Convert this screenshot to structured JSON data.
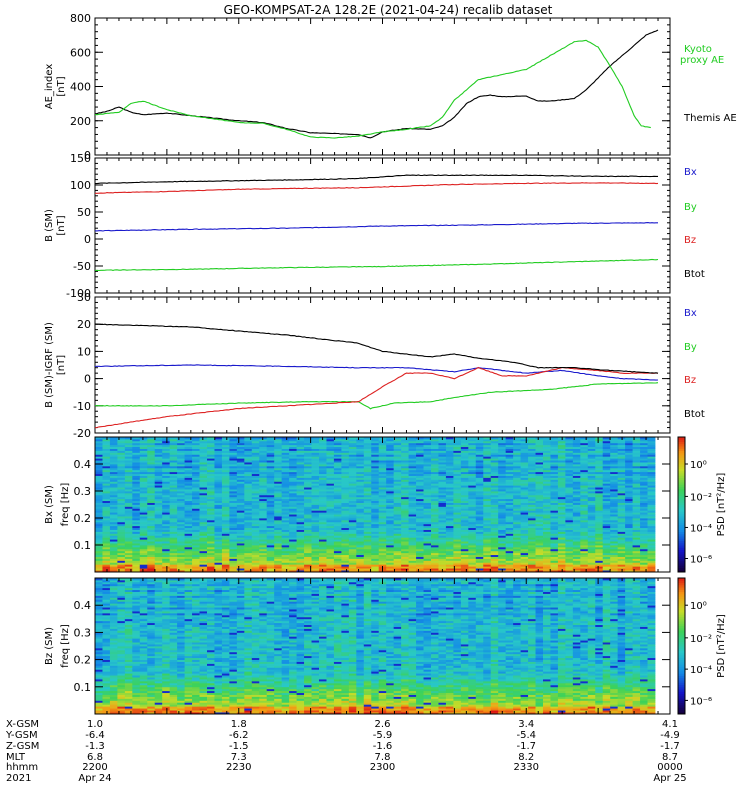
{
  "title": "GEO-KOMPSAT-2A 128.2E (2021-04-24) recalib dataset",
  "colors": {
    "black": "#000000",
    "blue": "#1a1acc",
    "green": "#22cc22",
    "red": "#dd2222"
  },
  "chart_data": [
    {
      "type": "line",
      "name": "ae",
      "ylabel_lines": [
        "AE_index",
        "[nT]"
      ],
      "ylim": [
        0,
        800
      ],
      "yticks": [
        "0",
        "200",
        "400",
        "600",
        "800"
      ],
      "x_range_utc": [
        "22:00",
        "00:20"
      ],
      "series": [
        {
          "name": "Themis AE",
          "color": "#000000",
          "points": [
            [
              0,
              240
            ],
            [
              5,
              255
            ],
            [
              10,
              280
            ],
            [
              15,
              250
            ],
            [
              20,
              235
            ],
            [
              30,
              245
            ],
            [
              40,
              230
            ],
            [
              50,
              215
            ],
            [
              60,
              200
            ],
            [
              70,
              190
            ],
            [
              80,
              155
            ],
            [
              90,
              130
            ],
            [
              100,
              125
            ],
            [
              110,
              120
            ],
            [
              115,
              100
            ],
            [
              120,
              135
            ],
            [
              130,
              155
            ],
            [
              140,
              150
            ],
            [
              145,
              170
            ],
            [
              150,
              220
            ],
            [
              155,
              300
            ],
            [
              160,
              340
            ],
            [
              165,
              350
            ],
            [
              170,
              340
            ],
            [
              180,
              345
            ],
            [
              185,
              315
            ],
            [
              190,
              315
            ],
            [
              200,
              330
            ],
            [
              205,
              380
            ],
            [
              210,
              450
            ],
            [
              215,
              520
            ],
            [
              220,
              580
            ],
            [
              225,
              640
            ],
            [
              230,
              700
            ],
            [
              235,
              730
            ]
          ]
        },
        {
          "name": "Kyoto proxy AE",
          "color": "#22cc22",
          "label_lines": [
            "Kyoto",
            "proxy AE"
          ],
          "points": [
            [
              0,
              235
            ],
            [
              10,
              250
            ],
            [
              15,
              300
            ],
            [
              20,
              315
            ],
            [
              30,
              265
            ],
            [
              40,
              230
            ],
            [
              50,
              210
            ],
            [
              60,
              190
            ],
            [
              70,
              185
            ],
            [
              80,
              150
            ],
            [
              90,
              105
            ],
            [
              100,
              100
            ],
            [
              110,
              110
            ],
            [
              120,
              135
            ],
            [
              130,
              150
            ],
            [
              140,
              170
            ],
            [
              145,
              220
            ],
            [
              150,
              320
            ],
            [
              155,
              380
            ],
            [
              160,
              440
            ],
            [
              170,
              470
            ],
            [
              180,
              500
            ],
            [
              190,
              580
            ],
            [
              200,
              660
            ],
            [
              205,
              670
            ],
            [
              210,
              630
            ],
            [
              215,
              520
            ],
            [
              220,
              400
            ],
            [
              225,
              230
            ],
            [
              228,
              170
            ],
            [
              232,
              160
            ]
          ]
        }
      ]
    },
    {
      "type": "line",
      "name": "b_sm",
      "ylabel_lines": [
        "B (SM)",
        "[nT]"
      ],
      "ylim": [
        -100,
        150
      ],
      "yticks": [
        "-100",
        "-50",
        "0",
        "50",
        "100",
        "150"
      ],
      "series": [
        {
          "name": "Bx",
          "color": "#1a1acc",
          "points": [
            [
              0,
              15
            ],
            [
              40,
              18
            ],
            [
              80,
              20
            ],
            [
              120,
              24
            ],
            [
              160,
              26
            ],
            [
              200,
              29
            ],
            [
              235,
              30
            ]
          ]
        },
        {
          "name": "By",
          "color": "#22cc22",
          "points": [
            [
              0,
              -58
            ],
            [
              40,
              -56
            ],
            [
              80,
              -53
            ],
            [
              120,
              -51
            ],
            [
              160,
              -47
            ],
            [
              200,
              -42
            ],
            [
              235,
              -38
            ]
          ]
        },
        {
          "name": "Bz",
          "color": "#dd2222",
          "points": [
            [
              0,
              85
            ],
            [
              30,
              88
            ],
            [
              60,
              92
            ],
            [
              90,
              94
            ],
            [
              110,
              95
            ],
            [
              130,
              98
            ],
            [
              150,
              101
            ],
            [
              180,
              103
            ],
            [
              210,
              104
            ],
            [
              235,
              103
            ]
          ]
        },
        {
          "name": "Btot",
          "color": "#000000",
          "points": [
            [
              0,
              103
            ],
            [
              30,
              106
            ],
            [
              60,
              108
            ],
            [
              90,
              110
            ],
            [
              110,
              112
            ],
            [
              130,
              118
            ],
            [
              150,
              118
            ],
            [
              180,
              118
            ],
            [
              210,
              116
            ],
            [
              235,
              116
            ]
          ]
        }
      ]
    },
    {
      "type": "line",
      "name": "b_igrf",
      "ylabel_lines": [
        "B (SM)-IGRF (SM)",
        "[nT]"
      ],
      "ylim": [
        -20,
        30
      ],
      "yticks": [
        "-20",
        "-10",
        "0",
        "10",
        "20",
        "30"
      ],
      "series": [
        {
          "name": "Bx",
          "color": "#1a1acc",
          "points": [
            [
              0,
              4.5
            ],
            [
              40,
              5
            ],
            [
              80,
              4.5
            ],
            [
              110,
              4
            ],
            [
              130,
              4
            ],
            [
              150,
              2.5
            ],
            [
              160,
              4
            ],
            [
              170,
              3
            ],
            [
              180,
              2
            ],
            [
              195,
              3
            ],
            [
              210,
              1
            ],
            [
              220,
              0
            ],
            [
              235,
              -0.5
            ]
          ]
        },
        {
          "name": "By",
          "color": "#22cc22",
          "points": [
            [
              0,
              -10
            ],
            [
              30,
              -10
            ],
            [
              60,
              -9
            ],
            [
              90,
              -8.5
            ],
            [
              110,
              -8.5
            ],
            [
              115,
              -11
            ],
            [
              125,
              -9
            ],
            [
              140,
              -8.5
            ],
            [
              150,
              -7
            ],
            [
              165,
              -5
            ],
            [
              190,
              -4
            ],
            [
              210,
              -2
            ],
            [
              235,
              -1.5
            ]
          ]
        },
        {
          "name": "Bz",
          "color": "#dd2222",
          "points": [
            [
              0,
              -18
            ],
            [
              30,
              -14
            ],
            [
              60,
              -11
            ],
            [
              90,
              -9.5
            ],
            [
              110,
              -8.5
            ],
            [
              120,
              -3
            ],
            [
              130,
              2
            ],
            [
              140,
              2
            ],
            [
              150,
              0
            ],
            [
              160,
              4
            ],
            [
              170,
              1
            ],
            [
              180,
              1
            ],
            [
              195,
              4
            ],
            [
              210,
              3
            ],
            [
              220,
              2
            ],
            [
              235,
              2
            ]
          ]
        },
        {
          "name": "Btot",
          "color": "#000000",
          "points": [
            [
              0,
              20
            ],
            [
              40,
              19
            ],
            [
              80,
              16
            ],
            [
              100,
              14
            ],
            [
              110,
              13
            ],
            [
              120,
              10
            ],
            [
              130,
              9
            ],
            [
              140,
              8
            ],
            [
              150,
              9
            ],
            [
              160,
              7.5
            ],
            [
              175,
              6
            ],
            [
              185,
              4
            ],
            [
              200,
              4
            ],
            [
              215,
              3
            ],
            [
              225,
              2.5
            ],
            [
              235,
              2
            ]
          ]
        }
      ]
    },
    {
      "type": "heatmap",
      "name": "bx_psd",
      "ylabel_lines": [
        "Bx (SM)",
        "freq [Hz]"
      ],
      "ylim": [
        0,
        0.5
      ],
      "yticks": [
        "0.1",
        "0.2",
        "0.3",
        "0.4"
      ],
      "colorbar_label": "PSD [nT²/Hz]",
      "colorbar_ticks": [
        "10⁰",
        "10⁻²",
        "10⁻⁴",
        "10⁻⁶"
      ],
      "seed": 7
    },
    {
      "type": "heatmap",
      "name": "bz_psd",
      "ylabel_lines": [
        "Bz (SM)",
        "freq [Hz]"
      ],
      "ylim": [
        0,
        0.5
      ],
      "yticks": [
        "0.1",
        "0.2",
        "0.3",
        "0.4"
      ],
      "colorbar_label": "PSD [nT²/Hz]",
      "colorbar_ticks": [
        "10⁰",
        "10⁻²",
        "10⁻⁴",
        "10⁻⁶"
      ],
      "seed": 19
    }
  ],
  "x_axis": {
    "row_labels": [
      "X-GSM",
      "Y-GSM",
      "Z-GSM",
      "MLT",
      "hhmm",
      "2021"
    ],
    "ticks": [
      {
        "t": 0,
        "values": [
          "1.0",
          "-6.4",
          "-1.3",
          "6.8",
          "2200",
          "Apr 24"
        ]
      },
      {
        "t": 60,
        "values": [
          "1.8",
          "-6.2",
          "-1.5",
          "7.3",
          "2230",
          ""
        ]
      },
      {
        "t": 120,
        "values": [
          "2.6",
          "-5.9",
          "-1.6",
          "7.8",
          "2300",
          ""
        ]
      },
      {
        "t": 180,
        "values": [
          "3.4",
          "-5.4",
          "-1.7",
          "8.2",
          "2330",
          ""
        ]
      },
      {
        "t": 240,
        "values": [
          "4.1",
          "-4.9",
          "-1.7",
          "8.7",
          "0000",
          "Apr 25"
        ]
      }
    ]
  },
  "legends": {
    "ae": [
      {
        "lines": [
          "Kyoto",
          "proxy AE"
        ],
        "color": "#22cc22"
      },
      {
        "lines": [
          "Themis AE"
        ],
        "color": "#000000"
      }
    ],
    "b": [
      {
        "label": "Bx",
        "color": "#1a1acc"
      },
      {
        "label": "By",
        "color": "#22cc22"
      },
      {
        "label": "Bz",
        "color": "#dd2222"
      },
      {
        "label": "Btot",
        "color": "#000000"
      }
    ]
  }
}
